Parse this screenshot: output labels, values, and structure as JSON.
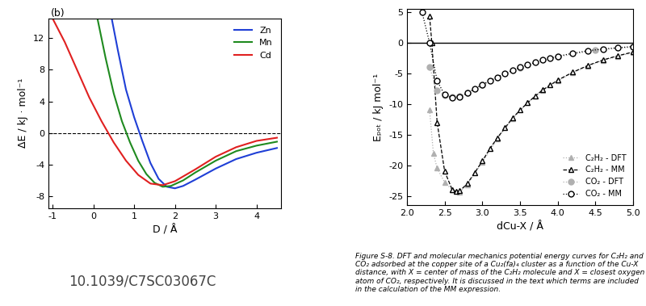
{
  "chart_data": [
    {
      "type": "line",
      "panel_label": "(b)",
      "source": "10.1039/C7SC03067C",
      "x_label": "D / Å",
      "y_label": "ΔE / kJ · mol⁻¹",
      "xlim": [
        -1.1,
        4.6
      ],
      "xticks": [
        -1,
        0,
        1,
        2,
        3,
        4
      ],
      "ylim": [
        -9.5,
        14.5
      ],
      "yticks": [
        -8,
        -4,
        0,
        4,
        8,
        12
      ],
      "hline": 0,
      "legend": "upper right",
      "series": [
        {
          "name": "Zn",
          "color": "#1f3fd6",
          "line_style": "solid",
          "x": [
            0.45,
            0.6,
            0.8,
            1.0,
            1.2,
            1.4,
            1.6,
            1.8,
            2.0,
            2.2,
            2.5,
            3.0,
            3.5,
            4.0,
            4.5
          ],
          "values": [
            14.5,
            10.5,
            5.5,
            2.0,
            -1.0,
            -3.8,
            -5.8,
            -6.8,
            -7.0,
            -6.7,
            -5.9,
            -4.5,
            -3.3,
            -2.5,
            -1.9
          ]
        },
        {
          "name": "Mn",
          "color": "#1f8a1f",
          "line_style": "solid",
          "x": [
            0.1,
            0.3,
            0.5,
            0.7,
            0.9,
            1.1,
            1.3,
            1.5,
            1.7,
            1.9,
            2.2,
            2.5,
            3.0,
            3.5,
            4.0,
            4.5
          ],
          "values": [
            14.5,
            9.5,
            5.0,
            1.5,
            -1.2,
            -3.5,
            -5.2,
            -6.3,
            -6.8,
            -6.7,
            -6.0,
            -5.0,
            -3.5,
            -2.3,
            -1.6,
            -1.1
          ]
        },
        {
          "name": "Cd",
          "color": "#e02020",
          "line_style": "solid",
          "x": [
            -1.0,
            -0.7,
            -0.4,
            -0.1,
            0.2,
            0.5,
            0.8,
            1.1,
            1.4,
            1.7,
            2.0,
            2.5,
            3.0,
            3.5,
            4.0,
            4.5
          ],
          "values": [
            14.5,
            11.5,
            8.0,
            4.5,
            1.5,
            -1.2,
            -3.5,
            -5.3,
            -6.4,
            -6.6,
            -6.1,
            -4.6,
            -3.0,
            -1.8,
            -1.0,
            -0.6
          ]
        }
      ]
    },
    {
      "type": "line",
      "caption": "Figure S-8. DFT and molecular mechanics potential energy curves for C₂H₂ and CO₂ adsorbed at the copper site of a Cu₂(fa)₄ cluster as a function of the Cu-X distance, with X = center of mass of the C₂H₂ molecule and X = closest oxygen atom of CO₂, respectively. It is discussed in the text which terms are included in the calculation of the MM expression.",
      "x_label": "dCu-X / Å",
      "y_label": "Eₚₒₜ / kJ mol⁻¹",
      "xlim": [
        2.0,
        5.0
      ],
      "xticks": [
        2.0,
        2.5,
        3.0,
        3.5,
        4.0,
        4.5,
        5.0
      ],
      "ylim": [
        -26.5,
        5.5
      ],
      "yticks": [
        -25,
        -20,
        -15,
        -10,
        -5,
        0,
        5
      ],
      "hline": 0,
      "legend": "lower right",
      "series": [
        {
          "name": "C₂H₂ - DFT",
          "color": "#b0b0b0",
          "marker": "triangle",
          "line_style": "dotted",
          "x": [
            2.3,
            2.35,
            2.4,
            2.5,
            2.6,
            2.7,
            2.8,
            3.0,
            3.2,
            3.4,
            3.6,
            3.8,
            4.0,
            4.2,
            4.4,
            4.6,
            4.8,
            5.0
          ],
          "values": [
            -11,
            -18,
            -20.5,
            -22.8,
            -24,
            -24.4,
            -23.2,
            -19.5,
            -15.7,
            -12.4,
            -9.8,
            -7.8,
            -6.2,
            -4.9,
            -3.8,
            -2.9,
            -2.2,
            -1.6
          ]
        },
        {
          "name": "C₂H₂ - MM",
          "color": "#000000",
          "marker": "open_triangle",
          "line_style": "dashed",
          "x": [
            2.3,
            2.33,
            2.4,
            2.5,
            2.6,
            2.65,
            2.7,
            2.8,
            2.9,
            3.0,
            3.1,
            3.2,
            3.3,
            3.4,
            3.5,
            3.6,
            3.7,
            3.8,
            3.9,
            4.0,
            4.2,
            4.4,
            4.6,
            4.8,
            5.0
          ],
          "values": [
            4.3,
            0,
            -13,
            -21,
            -24,
            -24.3,
            -24.2,
            -23,
            -21.2,
            -19.3,
            -17.3,
            -15.5,
            -13.9,
            -12.3,
            -11,
            -9.8,
            -8.7,
            -7.7,
            -6.9,
            -6.1,
            -4.8,
            -3.7,
            -2.8,
            -2.1,
            -1.5
          ]
        },
        {
          "name": "CO₂ - DFT",
          "color": "#b0b0b0",
          "marker": "circle",
          "line_style": "dotted",
          "x": [
            2.3,
            2.4,
            2.5,
            2.6,
            2.7,
            2.8,
            3.0,
            3.5,
            4.0,
            4.5,
            5.0
          ],
          "values": [
            -4,
            -7.8,
            -8.6,
            -8.8,
            -8.7,
            -8.2,
            -6.9,
            -4.1,
            -2.3,
            -1.2,
            -0.7
          ]
        },
        {
          "name": "CO₂ - MM",
          "color": "#000000",
          "marker": "open_circle",
          "line_style": "dotted",
          "x": [
            2.2,
            2.3,
            2.4,
            2.5,
            2.6,
            2.7,
            2.8,
            2.9,
            3.0,
            3.1,
            3.2,
            3.3,
            3.4,
            3.5,
            3.6,
            3.7,
            3.8,
            3.9,
            4.0,
            4.2,
            4.4,
            4.6,
            4.8,
            5.0
          ],
          "values": [
            5,
            0,
            -6.2,
            -8.5,
            -9,
            -8.8,
            -8.2,
            -7.5,
            -6.8,
            -6.2,
            -5.6,
            -5.0,
            -4.5,
            -4.0,
            -3.6,
            -3.2,
            -2.8,
            -2.5,
            -2.2,
            -1.7,
            -1.3,
            -1.0,
            -0.8,
            -0.6
          ]
        }
      ]
    }
  ]
}
